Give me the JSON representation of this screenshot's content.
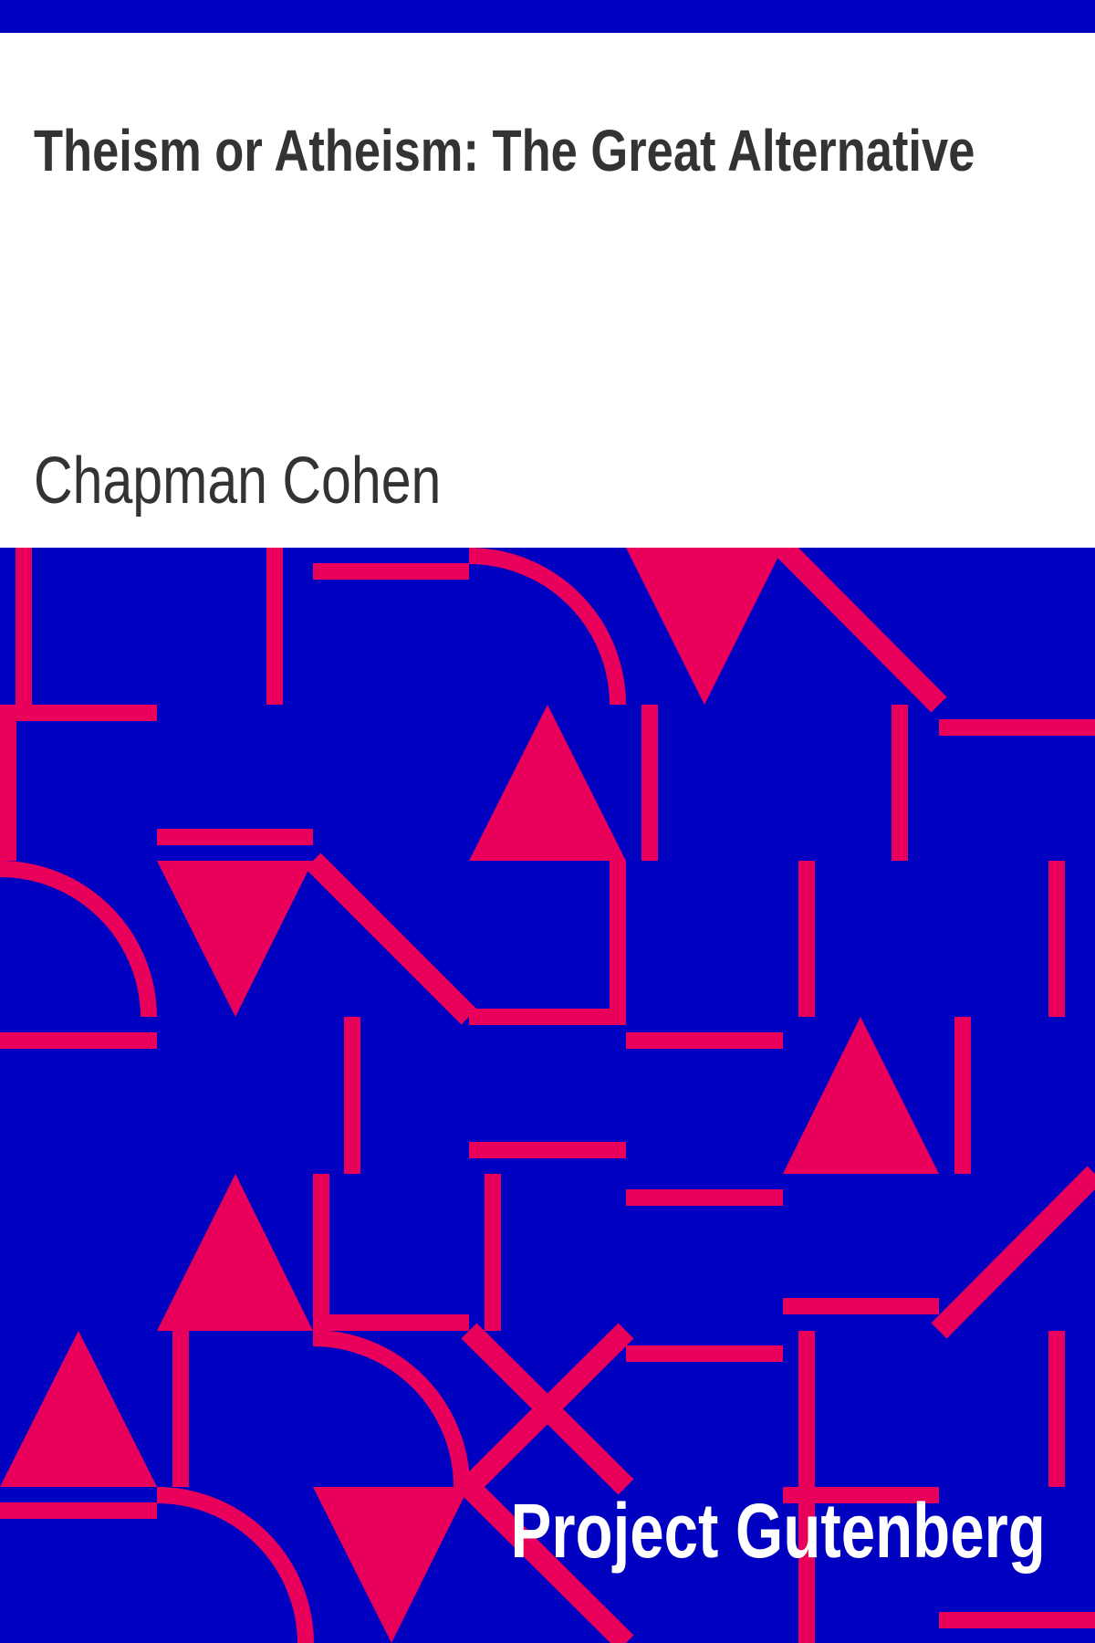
{
  "book": {
    "title": "Theism or Atheism: The Great Alternative",
    "author": "Chapman Cohen",
    "publisher": "Project Gutenberg"
  },
  "colors": {
    "band": "#0000c0",
    "accent": "#e8005a",
    "text": "#333333",
    "publisher_text": "#ffffff",
    "background": "#ffffff"
  }
}
